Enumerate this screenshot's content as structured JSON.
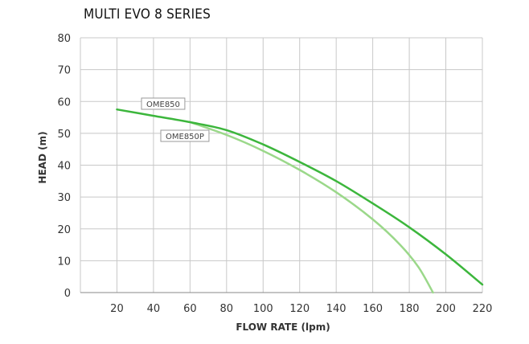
{
  "chart_data": {
    "type": "line",
    "title": "MULTI EVO 8 SERIES",
    "xlabel": "FLOW RATE (lpm)",
    "ylabel": "HEAD (m)",
    "xlim": [
      0,
      220
    ],
    "ylim": [
      0,
      80
    ],
    "x_ticks": [
      "20",
      "40",
      "60",
      "80",
      "100",
      "120",
      "140",
      "160",
      "180",
      "200",
      "220"
    ],
    "y_ticks": [
      "0",
      "10",
      "20",
      "30",
      "40",
      "50",
      "60",
      "70",
      "80"
    ],
    "grid": true,
    "legend": "labels on curves",
    "series": [
      {
        "name": "OME850",
        "color": "#3cb63c",
        "points": [
          [
            20,
            57.5
          ],
          [
            40,
            55.5
          ],
          [
            60,
            53.5
          ],
          [
            80,
            51
          ],
          [
            100,
            46.5
          ],
          [
            120,
            41
          ],
          [
            140,
            35
          ],
          [
            160,
            28
          ],
          [
            180,
            20.5
          ],
          [
            200,
            12
          ],
          [
            220,
            2.5
          ]
        ]
      },
      {
        "name": "OME850P",
        "color": "#9bd88a",
        "points": [
          [
            60,
            53.5
          ],
          [
            80,
            49.5
          ],
          [
            100,
            44.5
          ],
          [
            120,
            38.5
          ],
          [
            140,
            31.5
          ],
          [
            160,
            23
          ],
          [
            175,
            15
          ],
          [
            185,
            8
          ],
          [
            193,
            0
          ]
        ]
      }
    ]
  }
}
